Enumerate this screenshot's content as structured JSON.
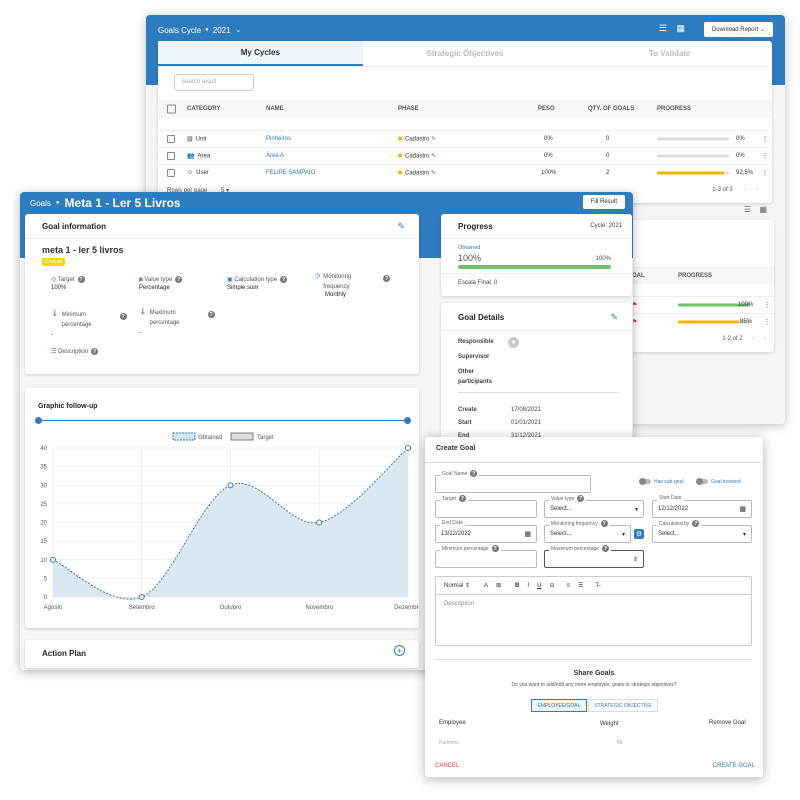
{
  "cycles_window": {
    "cycle_label": "Goals Cycle",
    "cycle_year": "2021",
    "download_label": "Download Report",
    "tabs": [
      {
        "label": "My Cycles"
      },
      {
        "label": "Strategic Objectives"
      },
      {
        "label": "To Validate"
      }
    ],
    "search_placeholder": "Search result",
    "columns": {
      "category": "CATEGORY",
      "name": "NAME",
      "phase": "PHASE",
      "peso": "PESO",
      "qty": "QTY. OF GOALS",
      "progress": "PROGRESS"
    },
    "rows": [
      {
        "category": "Unit",
        "name": "Pinheiros",
        "phase": "Cadastro",
        "peso": "0%",
        "qty": "0",
        "pct": "0%",
        "fill": 0,
        "color": "#cccccc"
      },
      {
        "category": "Area",
        "name": "Área A",
        "phase": "Cadastro",
        "peso": "0%",
        "qty": "0",
        "pct": "0%",
        "fill": 0,
        "color": "#cccccc"
      },
      {
        "category": "User",
        "name": "FELIPE SAMPAIO",
        "phase": "Cadastro",
        "peso": "100%",
        "qty": "2",
        "pct": "92,5%",
        "fill": 0.925,
        "color": "#f5b400"
      }
    ],
    "rows_per_page_label": "Rows per page",
    "rows_per_page": "5",
    "pagination": "1-3 of 3"
  },
  "second_card": {
    "col_goal": "T GOAL",
    "col_progress": "PROGRESS",
    "rows": [
      {
        "pct": "100%",
        "fill": 1.0,
        "color": "#6cc36c"
      },
      {
        "pct": "85%",
        "fill": 0.85,
        "color": "#f5b400"
      }
    ],
    "pagination": "1-2 of 2"
  },
  "goal_window": {
    "crumb": "Goals",
    "title": "Meta 1 - Ler 5 Livros",
    "fill_result": "Fill Result",
    "goal_info": {
      "heading": "Goal information",
      "name": "meta 1 - ler 5 livros",
      "chip": "Criação",
      "target_label": "Target",
      "target_value": "100%",
      "value_type_label": "Value type",
      "value_type_value": "Percentage",
      "calc_label": "Calculation type",
      "calc_value": "Simple sum",
      "monitoring_label": "Monitoring frequency",
      "monitoring_value": "Monthly",
      "min_label": "Minimum percentage",
      "min_value": "-",
      "max_label": "Maximum percentage",
      "max_value": "-",
      "description_label": "Description"
    },
    "progress": {
      "heading": "Progress",
      "cycle": "Cycle: 2021",
      "obtained_label": "Obtained",
      "value": "100%",
      "value_right": "100%",
      "fill": 1.0,
      "final": "Escala Final: 0"
    },
    "details": {
      "heading": "Goal Details",
      "responsible": "Responsible",
      "supervisor": "Supervisor",
      "other": "Other participants",
      "create_label": "Create",
      "create_value": "17/08/2021",
      "start_label": "Start",
      "start_value": "01/01/2021",
      "end_label": "End",
      "end_value": "31/12/2021"
    },
    "action_plan": "Action Plan"
  },
  "chart_data": {
    "type": "area",
    "title": "Graphic follow-up",
    "legend": [
      "Obtained",
      "Target"
    ],
    "categories": [
      "Agosto",
      "Setembro",
      "Outubro",
      "Novembro",
      "Dezembro"
    ],
    "ylim": [
      0,
      40
    ],
    "yticks": [
      "40",
      "35",
      "30",
      "25",
      "20",
      "15",
      "10",
      "5",
      "0"
    ],
    "series": [
      {
        "name": "Obtained",
        "values": [
          10,
          0,
          30,
          20,
          40
        ]
      }
    ],
    "grid": true,
    "colors": {
      "line": "#2d7cc0",
      "fill": "#d7e5f2"
    }
  },
  "create_goal": {
    "heading": "Create Goal",
    "goal_name_label": "Goal Name",
    "has_subgoal": "Has sub-goal",
    "goal_inverted": "Goal inverted",
    "target_label": "Target",
    "value_type_label": "Value type",
    "value_type_value": "Select...",
    "start_date_label": "Start Date",
    "start_date_value": "12/12/2022",
    "end_date_label": "End Date",
    "end_date_value": "13/12/2022",
    "monitoring_label": "Monitoring frequency",
    "monitoring_value": "Select...",
    "calc_label": "Calculated by",
    "calc_value": "Select...",
    "min_label": "Minimum percentage",
    "max_label": "Maximum percentage",
    "toolbar_format": "Normal",
    "description_placeholder": "Description",
    "share_heading": "Share Goals",
    "share_sub": "Do you want to add/edit any more employee, goals or strategic objectives?",
    "btn_employee": "EMPLOYEE/GOAL",
    "btn_strategic": "STRATEGIC OBJECTIVE",
    "col_employee": "Employee",
    "col_weight": "Weight",
    "col_remove": "Remove Goal",
    "employee_placeholder": "Padrinho",
    "weight_unit": "%",
    "cancel": "CANCEL",
    "create": "CREATE GOAL"
  }
}
